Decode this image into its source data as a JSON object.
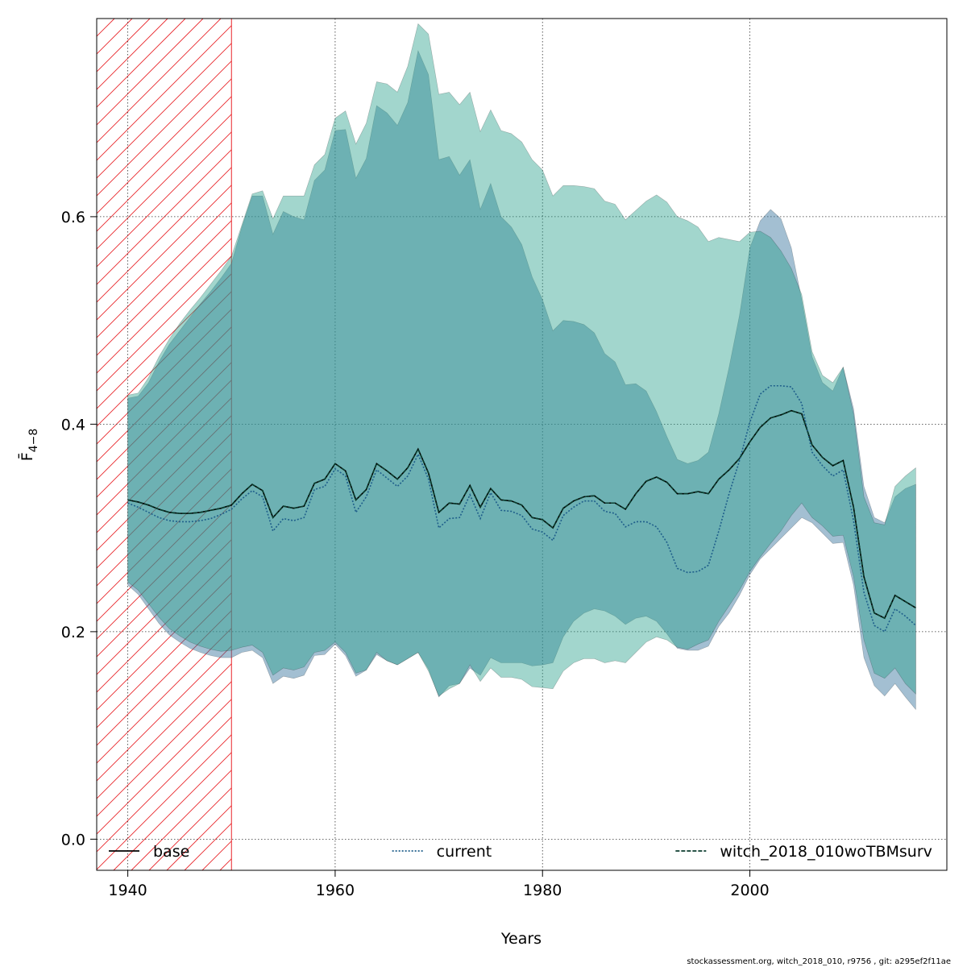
{
  "chart_data": {
    "type": "line",
    "xlabel": "Years",
    "ylabel": "F̄",
    "ylabel_subscript": "4−8",
    "footer": "stockassessment.org, witch_2018_010, r9756 , git: a295ef2f11ae",
    "xlim": [
      1937,
      2019
    ],
    "ylim": [
      -0.03,
      0.791
    ],
    "xticks": [
      1940,
      1960,
      1980,
      2000
    ],
    "yticks": [
      {
        "value": 0,
        "label": "0.0"
      },
      0.2,
      0.4,
      0.6
    ],
    "grid": true,
    "legend": "bottom",
    "hatched_region": [
      1937,
      1950
    ],
    "hatch_color": "#e8262b",
    "x": [
      1940,
      1941,
      1942,
      1943,
      1944,
      1945,
      1946,
      1947,
      1948,
      1949,
      1950,
      1951,
      1952,
      1953,
      1954,
      1955,
      1956,
      1957,
      1958,
      1959,
      1960,
      1961,
      1962,
      1963,
      1964,
      1965,
      1966,
      1967,
      1968,
      1969,
      1970,
      1971,
      1972,
      1973,
      1974,
      1975,
      1976,
      1977,
      1978,
      1979,
      1980,
      1981,
      1982,
      1983,
      1984,
      1985,
      1986,
      1987,
      1988,
      1989,
      1990,
      1991,
      1992,
      1993,
      1994,
      1995,
      1996,
      1997,
      1998,
      1999,
      2000,
      2001,
      2002,
      2003,
      2004,
      2005,
      2006,
      2007,
      2008,
      2009,
      2010,
      2011,
      2012,
      2013,
      2014,
      2015,
      2016
    ],
    "series": [
      {
        "name": "base",
        "color": "#000000",
        "linestyle": "solid",
        "values": [
          0.327,
          0.325,
          0.322,
          0.318,
          0.315,
          0.314,
          0.314,
          0.315,
          0.317,
          0.319,
          0.322,
          0.333,
          0.342,
          0.336,
          0.31,
          0.321,
          0.319,
          0.321,
          0.343,
          0.347,
          0.362,
          0.355,
          0.327,
          0.337,
          0.362,
          0.355,
          0.347,
          0.358,
          0.376,
          0.353,
          0.315,
          0.324,
          0.323,
          0.341,
          0.32,
          0.338,
          0.327,
          0.326,
          0.322,
          0.31,
          0.308,
          0.3,
          0.319,
          0.326,
          0.33,
          0.331,
          0.324,
          0.324,
          0.318,
          0.333,
          0.345,
          0.349,
          0.344,
          0.333,
          0.333,
          0.335,
          0.333,
          0.347,
          0.356,
          0.367,
          0.383,
          0.397,
          0.406,
          0.409,
          0.413,
          0.41,
          0.38,
          0.368,
          0.36,
          0.365,
          0.32,
          0.253,
          0.218,
          0.213,
          0.235,
          0.229,
          0.223
        ]
      },
      {
        "name": "current",
        "color": "#1f5f8b",
        "linestyle": "dotted",
        "band_color": "rgba(60,120,160,0.47)",
        "values": [
          0.324,
          0.32,
          0.315,
          0.31,
          0.307,
          0.306,
          0.306,
          0.307,
          0.309,
          0.313,
          0.318,
          0.328,
          0.336,
          0.33,
          0.297,
          0.309,
          0.307,
          0.31,
          0.337,
          0.34,
          0.357,
          0.35,
          0.315,
          0.33,
          0.356,
          0.348,
          0.34,
          0.35,
          0.371,
          0.347,
          0.3,
          0.309,
          0.31,
          0.332,
          0.309,
          0.334,
          0.317,
          0.316,
          0.312,
          0.299,
          0.296,
          0.288,
          0.312,
          0.32,
          0.326,
          0.326,
          0.316,
          0.314,
          0.301,
          0.306,
          0.306,
          0.301,
          0.286,
          0.261,
          0.257,
          0.258,
          0.264,
          0.297,
          0.333,
          0.365,
          0.402,
          0.429,
          0.437,
          0.437,
          0.436,
          0.42,
          0.373,
          0.36,
          0.35,
          0.356,
          0.307,
          0.238,
          0.206,
          0.2,
          0.222,
          0.215,
          0.206
        ],
        "upper": [
          0.425,
          0.427,
          0.44,
          0.46,
          0.477,
          0.49,
          0.503,
          0.516,
          0.528,
          0.541,
          0.555,
          0.59,
          0.62,
          0.62,
          0.583,
          0.605,
          0.6,
          0.597,
          0.635,
          0.645,
          0.683,
          0.684,
          0.637,
          0.656,
          0.707,
          0.7,
          0.688,
          0.71,
          0.76,
          0.737,
          0.655,
          0.658,
          0.64,
          0.655,
          0.607,
          0.632,
          0.6,
          0.59,
          0.573,
          0.542,
          0.52,
          0.49,
          0.5,
          0.499,
          0.496,
          0.488,
          0.468,
          0.46,
          0.438,
          0.439,
          0.432,
          0.412,
          0.388,
          0.366,
          0.362,
          0.365,
          0.373,
          0.41,
          0.455,
          0.505,
          0.57,
          0.596,
          0.607,
          0.598,
          0.57,
          0.52,
          0.465,
          0.44,
          0.432,
          0.455,
          0.415,
          0.34,
          0.31,
          0.305,
          0.33,
          0.338,
          0.342
        ],
        "lower": [
          0.245,
          0.236,
          0.222,
          0.208,
          0.197,
          0.19,
          0.184,
          0.18,
          0.177,
          0.175,
          0.175,
          0.18,
          0.182,
          0.175,
          0.15,
          0.157,
          0.155,
          0.158,
          0.177,
          0.178,
          0.188,
          0.177,
          0.157,
          0.163,
          0.178,
          0.172,
          0.168,
          0.174,
          0.18,
          0.164,
          0.137,
          0.148,
          0.15,
          0.165,
          0.158,
          0.175,
          0.17,
          0.17,
          0.17,
          0.167,
          0.168,
          0.17,
          0.195,
          0.21,
          0.218,
          0.222,
          0.22,
          0.215,
          0.207,
          0.213,
          0.215,
          0.21,
          0.198,
          0.184,
          0.182,
          0.182,
          0.186,
          0.205,
          0.218,
          0.235,
          0.255,
          0.27,
          0.28,
          0.29,
          0.3,
          0.31,
          0.305,
          0.295,
          0.285,
          0.286,
          0.245,
          0.175,
          0.148,
          0.138,
          0.15,
          0.137,
          0.125
        ]
      },
      {
        "name": "witch_2018_010woTBMsurv",
        "color": "#0b3d2e",
        "linestyle": "dashed",
        "band_color": "rgba(40,160,140,0.43)",
        "values": [
          0.327,
          0.325,
          0.322,
          0.318,
          0.315,
          0.314,
          0.314,
          0.315,
          0.317,
          0.319,
          0.322,
          0.333,
          0.342,
          0.336,
          0.31,
          0.321,
          0.319,
          0.321,
          0.343,
          0.347,
          0.362,
          0.355,
          0.327,
          0.337,
          0.362,
          0.355,
          0.347,
          0.358,
          0.376,
          0.353,
          0.315,
          0.324,
          0.323,
          0.341,
          0.32,
          0.338,
          0.327,
          0.326,
          0.322,
          0.31,
          0.308,
          0.3,
          0.319,
          0.326,
          0.33,
          0.331,
          0.324,
          0.324,
          0.318,
          0.333,
          0.345,
          0.349,
          0.344,
          0.333,
          0.333,
          0.335,
          0.333,
          0.347,
          0.356,
          0.367,
          0.383,
          0.397,
          0.406,
          0.409,
          0.413,
          0.41,
          0.38,
          0.368,
          0.36,
          0.365,
          0.32,
          0.253,
          0.218,
          0.213,
          0.235,
          0.229,
          0.223
        ],
        "upper": [
          0.428,
          0.43,
          0.445,
          0.465,
          0.482,
          0.497,
          0.51,
          0.522,
          0.535,
          0.548,
          0.562,
          0.592,
          0.622,
          0.625,
          0.598,
          0.62,
          0.62,
          0.62,
          0.65,
          0.66,
          0.695,
          0.702,
          0.67,
          0.69,
          0.73,
          0.728,
          0.72,
          0.745,
          0.786,
          0.776,
          0.718,
          0.72,
          0.708,
          0.72,
          0.682,
          0.703,
          0.683,
          0.68,
          0.672,
          0.655,
          0.645,
          0.62,
          0.63,
          0.63,
          0.629,
          0.627,
          0.615,
          0.612,
          0.597,
          0.606,
          0.615,
          0.621,
          0.614,
          0.6,
          0.596,
          0.59,
          0.576,
          0.58,
          0.578,
          0.576,
          0.585,
          0.586,
          0.58,
          0.567,
          0.55,
          0.525,
          0.47,
          0.447,
          0.44,
          0.455,
          0.41,
          0.33,
          0.305,
          0.303,
          0.34,
          0.35,
          0.358
        ],
        "lower": [
          0.248,
          0.24,
          0.227,
          0.214,
          0.203,
          0.196,
          0.19,
          0.186,
          0.183,
          0.181,
          0.182,
          0.185,
          0.187,
          0.18,
          0.158,
          0.165,
          0.163,
          0.166,
          0.18,
          0.182,
          0.19,
          0.18,
          0.16,
          0.163,
          0.18,
          0.172,
          0.168,
          0.174,
          0.18,
          0.162,
          0.138,
          0.145,
          0.15,
          0.168,
          0.152,
          0.165,
          0.156,
          0.156,
          0.154,
          0.147,
          0.146,
          0.145,
          0.162,
          0.17,
          0.174,
          0.174,
          0.17,
          0.172,
          0.17,
          0.18,
          0.19,
          0.195,
          0.192,
          0.185,
          0.183,
          0.188,
          0.192,
          0.21,
          0.225,
          0.24,
          0.258,
          0.272,
          0.285,
          0.297,
          0.312,
          0.324,
          0.31,
          0.302,
          0.292,
          0.293,
          0.253,
          0.192,
          0.16,
          0.155,
          0.165,
          0.15,
          0.14
        ]
      }
    ]
  }
}
